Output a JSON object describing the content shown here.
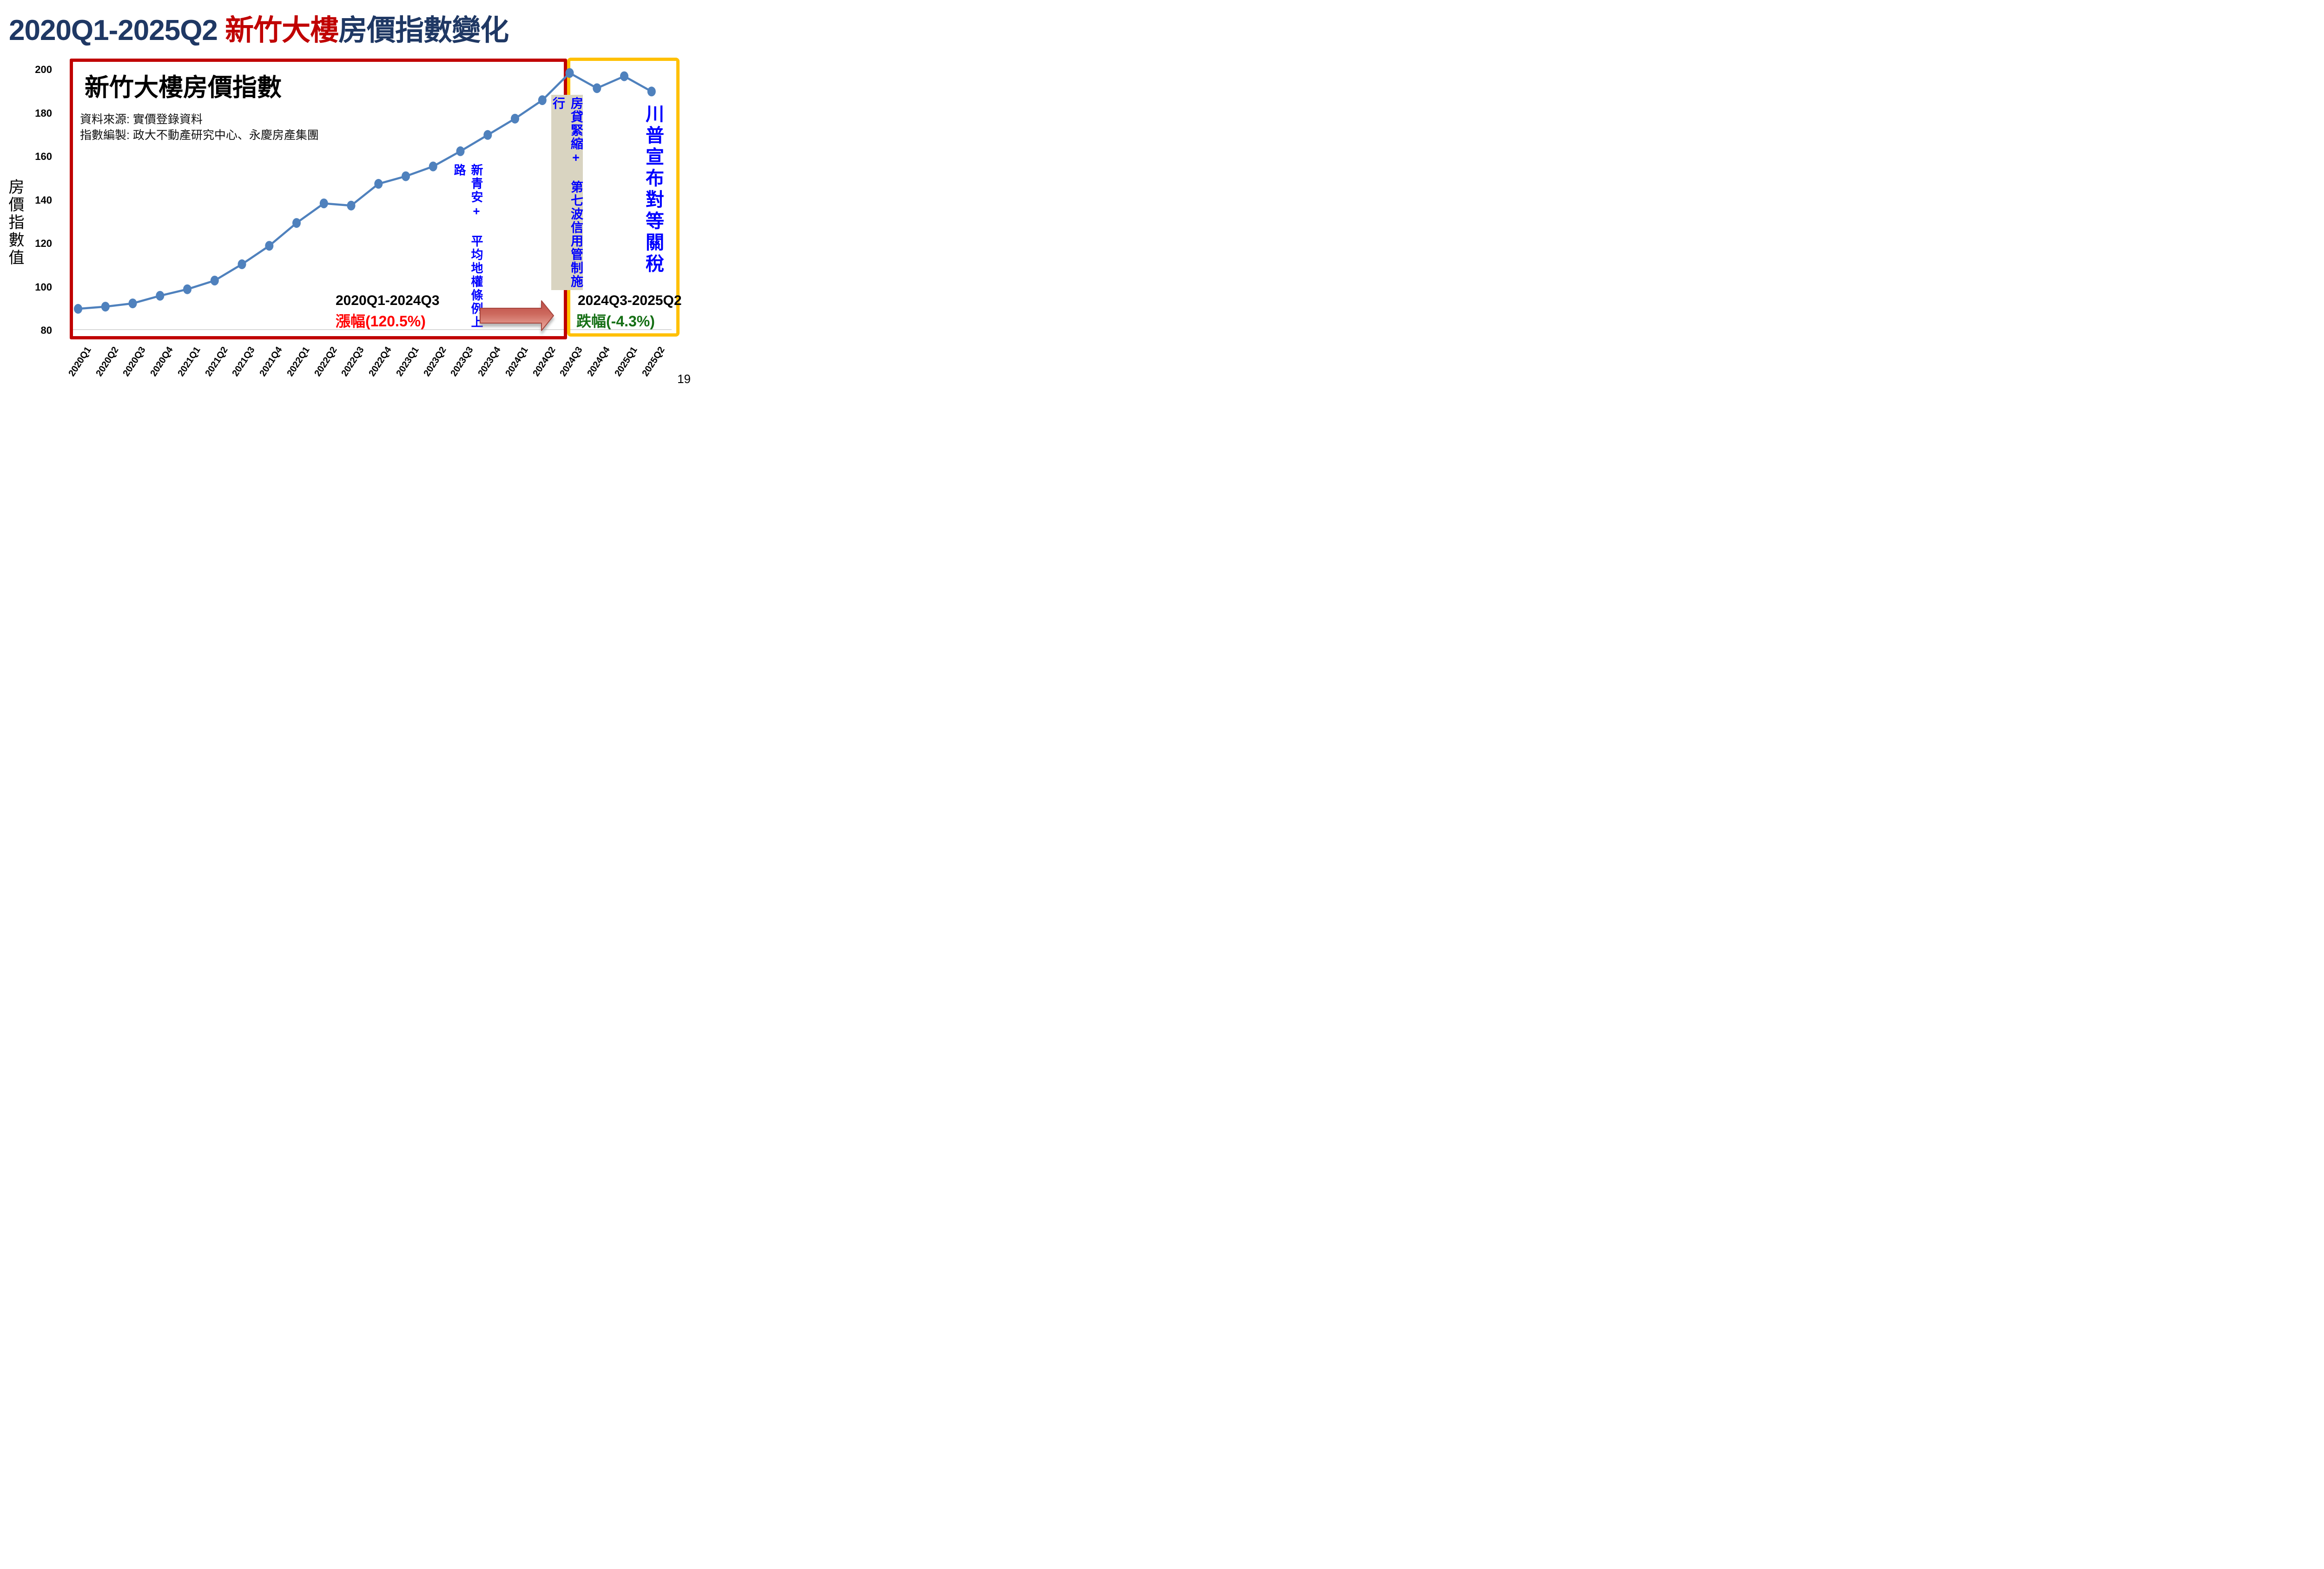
{
  "page": {
    "number": "19"
  },
  "header": {
    "title_part1": "2020Q1-2025Q2 ",
    "title_part2": "新竹大樓",
    "title_part3": "房價指數變化"
  },
  "chart": {
    "title": "新竹大樓房價指數",
    "source_line1": "資料來源: 實價登錄資料",
    "source_line2": "指數編製: 政大不動產研究中心、永慶房產集團",
    "y_axis_title": "房價指數值"
  },
  "annotations": {
    "policy_2023": "新青安+ 平均地權條例上路",
    "policy_2024": "房貸緊縮+ 第七波信用管制施行",
    "policy_2025": "川普宣布對等關稅"
  },
  "periods": {
    "rise_label": "2020Q1-2024Q3",
    "rise_value": "漲幅(120.5%)",
    "fall_label": "2024Q3-2025Q2",
    "fall_value": "跌幅(-4.3%)"
  },
  "colors": {
    "title_navy": "#1F3864",
    "title_highlight": "#C00000",
    "rise_box": "#C00000",
    "fall_box": "#FFC000",
    "annotation_blue": "#0000FF",
    "rise_text": "#FF0000",
    "fall_text": "#156F15",
    "beige": "#D9D4C1",
    "line": "#4F81BD"
  },
  "chart_data": {
    "type": "line",
    "title": "新竹大樓房價指數",
    "xlabel": "",
    "ylabel": "房價指數值",
    "categories": [
      "2020Q1",
      "2020Q2",
      "2020Q3",
      "2020Q4",
      "2021Q1",
      "2021Q2",
      "2021Q3",
      "2021Q4",
      "2022Q1",
      "2022Q2",
      "2022Q3",
      "2022Q4",
      "2023Q1",
      "2023Q2",
      "2023Q3",
      "2023Q4",
      "2024Q1",
      "2024Q2",
      "2024Q3",
      "2024Q4",
      "2025Q1",
      "2025Q2"
    ],
    "series": [
      {
        "name": "新竹大樓房價指數",
        "values": [
          90,
          91,
          92.5,
          96,
          99,
          103,
          110.5,
          119,
          129.5,
          138.5,
          137.5,
          147.5,
          151,
          155.5,
          162.5,
          170,
          177.5,
          186,
          198.5,
          191.5,
          197,
          190
        ]
      }
    ],
    "ylim": [
      80,
      200
    ],
    "yticks": [
      80,
      100,
      120,
      140,
      160,
      180,
      200
    ],
    "grid": "single horizontal gridline at 80 only",
    "legend": "none",
    "line_color": "#4F81BD",
    "marker": "circle"
  }
}
